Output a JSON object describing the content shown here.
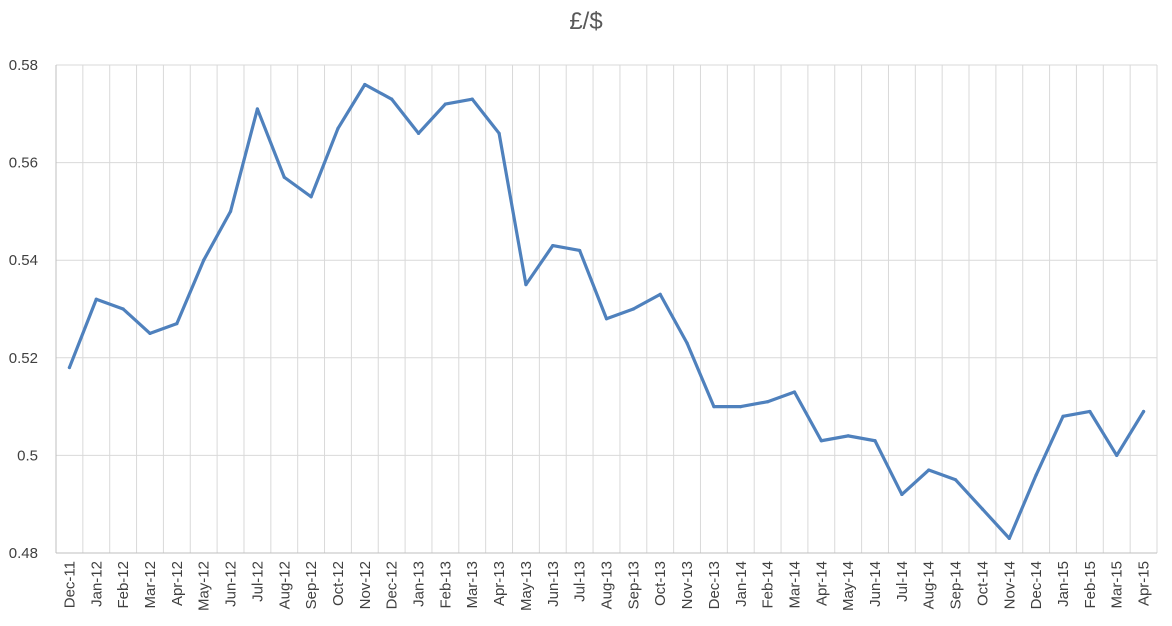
{
  "chart_data": {
    "type": "line",
    "title": "£/$",
    "xlabel": "",
    "ylabel": "",
    "categories": [
      "Dec-11",
      "Jan-12",
      "Feb-12",
      "Mar-12",
      "Apr-12",
      "May-12",
      "Jun-12",
      "Jul-12",
      "Aug-12",
      "Sep-12",
      "Oct-12",
      "Nov-12",
      "Dec-12",
      "Jan-13",
      "Feb-13",
      "Mar-13",
      "Apr-13",
      "May-13",
      "Jun-13",
      "Jul-13",
      "Aug-13",
      "Sep-13",
      "Oct-13",
      "Nov-13",
      "Dec-13",
      "Jan-14",
      "Feb-14",
      "Mar-14",
      "Apr-14",
      "May-14",
      "Jun-14",
      "Jul-14",
      "Aug-14",
      "Sep-14",
      "Oct-14",
      "Nov-14",
      "Dec-14",
      "Jan-15",
      "Feb-15",
      "Mar-15",
      "Apr-15"
    ],
    "series": [
      {
        "values": [
          0.518,
          0.532,
          0.53,
          0.525,
          0.527,
          0.54,
          0.55,
          0.571,
          0.557,
          0.553,
          0.567,
          0.576,
          0.573,
          0.566,
          0.572,
          0.573,
          0.566,
          0.535,
          0.543,
          0.542,
          0.528,
          0.53,
          0.533,
          0.523,
          0.51,
          0.51,
          0.511,
          0.513,
          0.503,
          0.504,
          0.503,
          0.492,
          0.497,
          0.495,
          0.489,
          0.483,
          0.496,
          0.508,
          0.509,
          0.5,
          0.509
        ],
        "color": "#4f81bd"
      }
    ],
    "ylim": [
      0.48,
      0.58
    ],
    "yticks": [
      0.48,
      0.5,
      0.52,
      0.54,
      0.56,
      0.58
    ],
    "ytick_labels": [
      "0.48",
      "0.5",
      "0.52",
      "0.54",
      "0.56",
      "0.58"
    ],
    "grid": true,
    "legend": "none"
  }
}
